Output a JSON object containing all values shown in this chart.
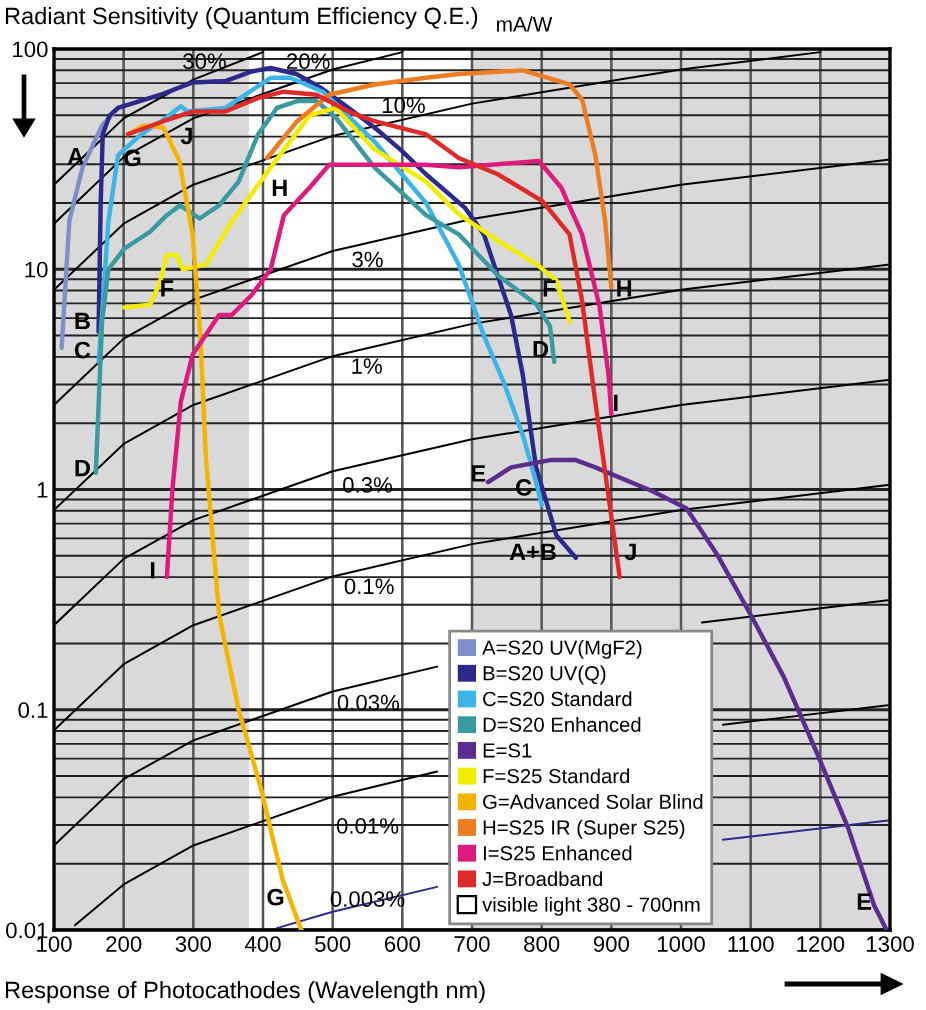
{
  "chart_data": {
    "type": "line",
    "ylabel": "Radiant Sensitivity (Quantum Efficiency Q.E.)",
    "xlabel": "Response of Photocathodes (Wavelength nm)",
    "xlim": [
      100,
      1300
    ],
    "ylim": [
      0.01,
      100
    ],
    "xticks": [
      100,
      200,
      300,
      400,
      500,
      600,
      700,
      800,
      900,
      1000,
      1100,
      1200,
      1300
    ],
    "yticks": [
      0.01,
      0.1,
      1,
      10,
      100
    ],
    "log": "y",
    "grid": true,
    "legend": "bottom",
    "bands": [
      {
        "axis": "x",
        "from": 380,
        "to": 700,
        "label": "visible light 380 - 700nm",
        "color": "#ffffff"
      }
    ],
    "series": [
      {
        "name": "A=S20 UV(MgF2)",
        "color": "#7f8fc8",
        "x": [
          111,
          122,
          141,
          169,
          192
        ],
        "values": [
          4.4,
          16.6,
          29,
          45,
          54
        ]
      },
      {
        "name": "B=S20 UV(Q)",
        "color": "#2b2a8c",
        "x": [
          164,
          167,
          170,
          180,
          192,
          253,
          299,
          346,
          383,
          411,
          448,
          485,
          523,
          560,
          597,
          634,
          690,
          717,
          756,
          773,
          792,
          821,
          849
        ],
        "values": [
          5.2,
          20,
          41,
          50,
          54,
          62,
          70.5,
          71.5,
          79,
          82,
          77,
          66,
          54,
          44,
          35,
          27,
          19,
          14.4,
          6.2,
          3.3,
          1.26,
          0.62,
          0.49
        ]
      },
      {
        "name": "C=S20 Standard",
        "color": "#3db4e8",
        "x": [
          164,
          169,
          178,
          192,
          225,
          262,
          282,
          291,
          346,
          411,
          439,
          486,
          560,
          634,
          681,
          717,
          745,
          773,
          792,
          800
        ],
        "values": [
          3.8,
          6.2,
          16.4,
          33,
          41,
          49,
          55,
          52,
          54,
          74,
          74,
          64,
          38,
          20,
          10.5,
          5.0,
          3.1,
          1.76,
          1.08,
          0.85
        ]
      },
      {
        "name": "D=S20 Enhanced",
        "color": "#3a9aa0",
        "x": [
          160,
          169,
          178,
          201,
          238,
          262,
          281,
          309,
          337,
          365,
          393,
          420,
          449,
          477,
          504,
          560,
          634,
          681,
          737,
          793,
          812,
          818
        ],
        "values": [
          1.19,
          5.8,
          10,
          12.4,
          14.8,
          17.6,
          19.5,
          17,
          19.5,
          25,
          41,
          54,
          58,
          58,
          49,
          29,
          17.6,
          14.4,
          9.4,
          6.9,
          5.5,
          3.8
        ]
      },
      {
        "name": "E=S1",
        "color": "#5b2d8e",
        "x": [
          723,
          756,
          812,
          849,
          877,
          960,
          1008,
          1053,
          1100,
          1148,
          1193,
          1240,
          1277,
          1295
        ],
        "values": [
          1.08,
          1.26,
          1.36,
          1.36,
          1.26,
          0.98,
          0.82,
          0.5,
          0.27,
          0.14,
          0.066,
          0.029,
          0.013,
          0.01
        ]
      },
      {
        "name": "F=S25 Standard",
        "color": "#f2ec00",
        "x": [
          201,
          238,
          252,
          262,
          276,
          285,
          318,
          355,
          411,
          467,
          504,
          560,
          634,
          681,
          737,
          793,
          821,
          840
        ],
        "values": [
          6.7,
          6.9,
          8.7,
          11.6,
          11.6,
          10,
          10.5,
          16.4,
          29,
          50,
          54,
          35,
          25,
          17.8,
          13.5,
          10.5,
          8.9,
          5.8
        ]
      },
      {
        "name": "G=Advanced Solar Blind",
        "color": "#f5b400",
        "x": [
          206,
          229,
          257,
          280,
          299,
          310,
          318,
          337,
          365,
          397,
          428,
          455
        ],
        "values": [
          41,
          45,
          44,
          31,
          14.3,
          5.0,
          1.4,
          0.27,
          0.1,
          0.044,
          0.017,
          0.01
        ]
      },
      {
        "name": "H=S25 IR (Super S25)",
        "color": "#ee7d22",
        "x": [
          406,
          449,
          495,
          560,
          634,
          681,
          773,
          840,
          858,
          877,
          891,
          900
        ],
        "values": [
          32,
          47,
          62,
          69,
          74,
          77,
          80,
          69,
          59,
          33,
          16.6,
          8.3
        ]
      },
      {
        "name": "I=S25 Enhanced",
        "color": "#e0197d",
        "x": [
          262,
          270,
          282,
          299,
          337,
          355,
          383,
          411,
          430,
          467,
          495,
          560,
          634,
          681,
          796,
          828,
          858,
          883,
          896,
          900
        ],
        "values": [
          0.4,
          1.0,
          2.5,
          4.1,
          6.2,
          6.2,
          7.6,
          10,
          17.6,
          23.5,
          29.8,
          29.8,
          29.8,
          29,
          31,
          23.5,
          14.4,
          6.8,
          3.3,
          2.2
        ]
      },
      {
        "name": "J=Broadband",
        "color": "#e02a2a",
        "x": [
          206,
          257,
          299,
          346,
          393,
          430,
          477,
          523,
          560,
          634,
          681,
          737,
          801,
          840,
          858,
          877,
          896,
          912
        ],
        "values": [
          41,
          47,
          52,
          52,
          60,
          64,
          62,
          52,
          47,
          41,
          32,
          27,
          20.4,
          14.4,
          7.2,
          2.5,
          0.93,
          0.4
        ]
      },
      {
        "color": "#000000",
        "x": [
          100,
          200,
          300,
          400
        ],
        "values": [
          24.2,
          48.4,
          72.6,
          96.8
        ]
      },
      {
        "color": "#000000",
        "x": [
          100,
          200,
          300,
          500,
          600
        ],
        "values": [
          16.1,
          32.3,
          48.4,
          80.7,
          96.8
        ]
      },
      {
        "color": "#000000",
        "x": [
          100,
          200,
          300,
          500,
          700,
          1000,
          1200
        ],
        "values": [
          8.07,
          16.1,
          24.2,
          40.3,
          56.5,
          80.7,
          96.8
        ]
      },
      {
        "color": "#000000",
        "x": [
          100,
          200,
          300,
          500,
          700,
          1000,
          1300
        ],
        "values": [
          2.42,
          4.84,
          7.26,
          12.1,
          16.9,
          24.2,
          31.5
        ]
      },
      {
        "color": "#000000",
        "x": [
          100,
          200,
          300,
          500,
          700,
          1000,
          1300
        ],
        "values": [
          0.807,
          1.61,
          2.42,
          4.03,
          5.65,
          8.07,
          10.5
        ]
      },
      {
        "color": "#000000",
        "x": [
          100,
          200,
          300,
          500,
          700,
          1000,
          1300
        ],
        "values": [
          0.242,
          0.484,
          0.726,
          1.21,
          1.69,
          2.42,
          3.15
        ]
      },
      {
        "color": "#000000",
        "x": [
          100,
          200,
          300,
          500,
          700,
          1000,
          1300
        ],
        "values": [
          0.0807,
          0.161,
          0.242,
          0.403,
          0.565,
          0.807,
          1.05
        ]
      },
      {
        "color": "#000000",
        "x": [
          100,
          200,
          300,
          500,
          650,
          800,
          1030,
          1300
        ],
        "values": [
          0.0242,
          0.0484,
          0.0726,
          0.121,
          0.157,
          null,
          0.249,
          0.315
        ]
      },
      {
        "color": "#000000",
        "x": [
          130,
          200,
          300,
          500,
          650,
          800,
          1060,
          1300
        ],
        "values": [
          0.0105,
          0.0161,
          0.0242,
          0.0403,
          0.0524,
          null,
          0.0855,
          0.105
        ]
      },
      {
        "color": "#2b2a8c",
        "x": [
          420,
          500,
          650,
          800,
          1060,
          1300
        ],
        "values": [
          0.0102,
          0.0121,
          0.0157,
          null,
          0.0257,
          0.0315
        ]
      }
    ],
    "annotations": [
      "mA/W",
      "A",
      "B",
      "C",
      "D",
      "F",
      "G",
      "J",
      "H",
      "I",
      "G",
      "F",
      "H",
      "D",
      "I",
      "E",
      "C",
      "A+B",
      "J",
      "E",
      "30%",
      "20%",
      "10%",
      "3%",
      "1%",
      "0.3%",
      "0.1%",
      "0.03%",
      "0.01%",
      "0.003%"
    ]
  }
}
